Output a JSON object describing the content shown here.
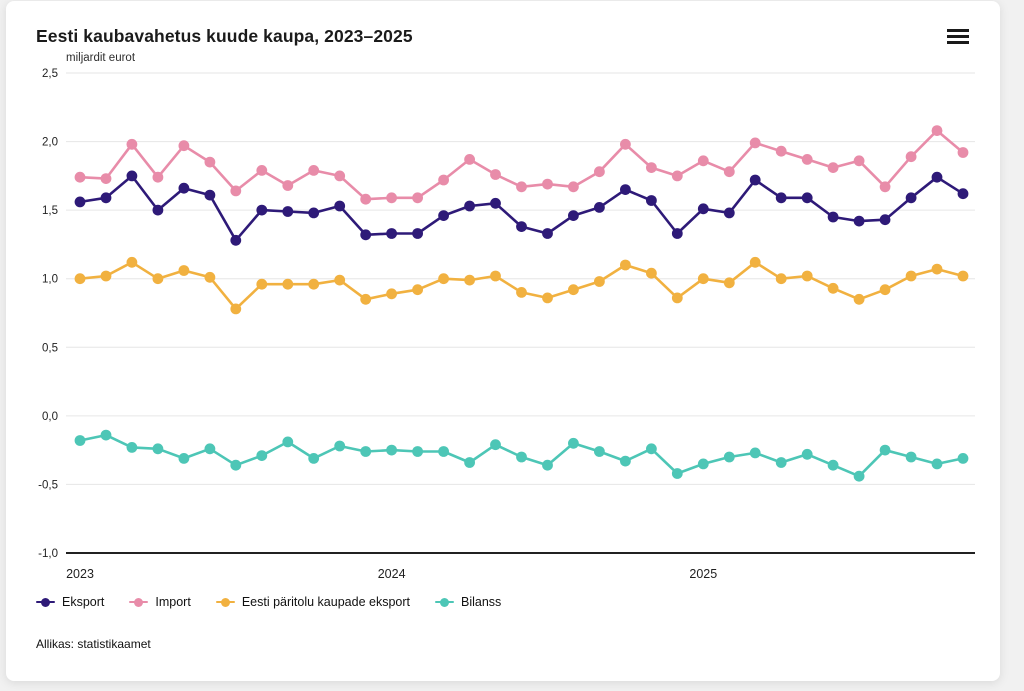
{
  "title": "Eesti kaubavahetus kuude kaupa, 2023–2025",
  "subtitle": "miljardit eurot",
  "source": "Allikas: statistikaamet",
  "menu": {
    "icon": "hamburger-menu-icon"
  },
  "colors": {
    "eksport": "#2e1a78",
    "import": "#e88ca9",
    "paritolu": "#f1b140",
    "bilanss": "#4dc6b6",
    "gridline": "#e6e6e6",
    "axis_line": "#212121",
    "text": "#1f1f1f"
  },
  "legend": {
    "items": [
      {
        "key": "eksport",
        "label": "Eksport"
      },
      {
        "key": "import",
        "label": "Import"
      },
      {
        "key": "paritolu",
        "label": "Eesti päritolu kaupade eksport"
      },
      {
        "key": "bilanss",
        "label": "Bilanss"
      }
    ]
  },
  "chart_data": {
    "type": "line",
    "title": "Eesti kaubavahetus kuude kaupa, 2023–2025",
    "ylabel": "miljardit eurot",
    "ylim": [
      -1.0,
      2.5
    ],
    "grid": "horizontal",
    "legend_position": "bottom",
    "x_unit": "month",
    "x_range": "2023-01 to 2025-11",
    "y_ticks": [
      {
        "value": 2.5,
        "label": "2,5"
      },
      {
        "value": 2.0,
        "label": "2,0"
      },
      {
        "value": 1.5,
        "label": "1,5"
      },
      {
        "value": 1.0,
        "label": "1,0"
      },
      {
        "value": 0.5,
        "label": "0,5"
      },
      {
        "value": 0.0,
        "label": "0,0"
      },
      {
        "value": -0.5,
        "label": "-0,5"
      },
      {
        "value": -1.0,
        "label": "-1,0"
      }
    ],
    "x_ticks": [
      {
        "month_index": 0,
        "label": "2023"
      },
      {
        "month_index": 12,
        "label": "2024"
      },
      {
        "month_index": 24,
        "label": "2025"
      }
    ],
    "series": [
      {
        "name": "Import",
        "color_key": "import",
        "values": [
          1.74,
          1.73,
          1.98,
          1.74,
          1.97,
          1.85,
          1.64,
          1.79,
          1.68,
          1.79,
          1.75,
          1.58,
          1.59,
          1.59,
          1.72,
          1.87,
          1.76,
          1.67,
          1.69,
          1.67,
          1.78,
          1.98,
          1.81,
          1.75,
          1.86,
          1.78,
          1.99,
          1.93,
          1.87,
          1.81,
          1.86,
          1.67,
          1.89,
          2.08,
          1.92
        ]
      },
      {
        "name": "Eksport",
        "color_key": "eksport",
        "values": [
          1.56,
          1.59,
          1.75,
          1.5,
          1.66,
          1.61,
          1.28,
          1.5,
          1.49,
          1.48,
          1.53,
          1.32,
          1.33,
          1.33,
          1.46,
          1.53,
          1.55,
          1.38,
          1.33,
          1.46,
          1.52,
          1.65,
          1.57,
          1.33,
          1.51,
          1.48,
          1.72,
          1.59,
          1.59,
          1.45,
          1.42,
          1.43,
          1.59,
          1.74,
          1.62
        ]
      },
      {
        "name": "Eesti päritolu kaupade eksport",
        "color_key": "paritolu",
        "values": [
          1.0,
          1.02,
          1.12,
          1.0,
          1.06,
          1.01,
          0.78,
          0.96,
          0.96,
          0.96,
          0.99,
          0.85,
          0.89,
          0.92,
          1.0,
          0.99,
          1.02,
          0.9,
          0.86,
          0.92,
          0.98,
          1.1,
          1.04,
          0.86,
          1.0,
          0.97,
          1.12,
          1.0,
          1.02,
          0.93,
          0.85,
          0.92,
          1.02,
          1.07,
          1.02
        ]
      },
      {
        "name": "Bilanss",
        "color_key": "bilanss",
        "values": [
          -0.18,
          -0.14,
          -0.23,
          -0.24,
          -0.31,
          -0.24,
          -0.36,
          -0.29,
          -0.19,
          -0.31,
          -0.22,
          -0.26,
          -0.25,
          -0.26,
          -0.26,
          -0.34,
          -0.21,
          -0.3,
          -0.36,
          -0.2,
          -0.26,
          -0.33,
          -0.24,
          -0.42,
          -0.35,
          -0.3,
          -0.27,
          -0.34,
          -0.28,
          -0.36,
          -0.44,
          -0.25,
          -0.3,
          -0.35,
          -0.31
        ]
      }
    ]
  }
}
